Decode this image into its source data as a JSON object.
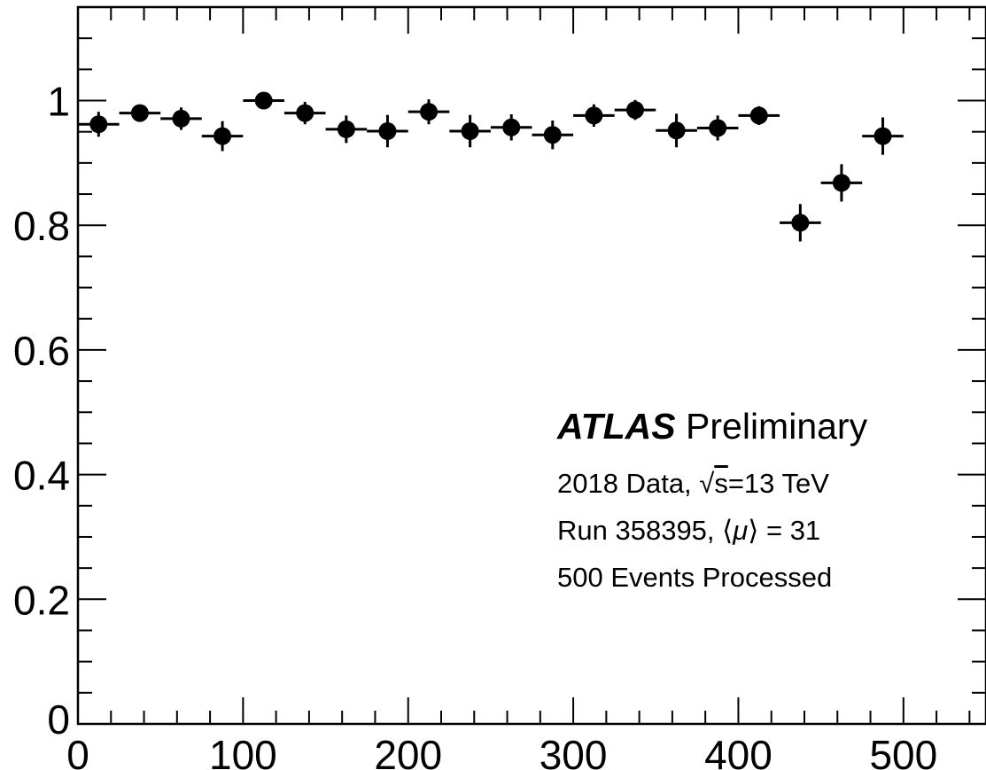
{
  "chart_data": {
    "type": "scatter",
    "title": "",
    "xlabel": "",
    "ylabel": "",
    "xlim": [
      0,
      550
    ],
    "ylim": [
      0,
      1.15
    ],
    "x_ticks": [
      "0",
      "100",
      "200",
      "300",
      "400",
      "500"
    ],
    "y_ticks": [
      "0",
      "0.2",
      "0.4",
      "0.6",
      "0.8",
      "1"
    ],
    "grid": false,
    "bin_width": 25,
    "series": [
      {
        "x": [
          12.5,
          37.5,
          62.5,
          87.5,
          112.5,
          137.5,
          162.5,
          187.5,
          212.5,
          237.5,
          262.5,
          287.5,
          312.5,
          337.5,
          362.5,
          387.5,
          412.5,
          437.5,
          462.5,
          487.5
        ],
        "y": [
          0.962,
          0.98,
          0.971,
          0.943,
          1.0,
          0.98,
          0.954,
          0.951,
          0.982,
          0.951,
          0.957,
          0.945,
          0.976,
          0.985,
          0.952,
          0.956,
          0.976,
          0.804,
          0.868,
          0.943
        ],
        "yerr": [
          0.02,
          0.012,
          0.018,
          0.024,
          0.005,
          0.018,
          0.022,
          0.026,
          0.02,
          0.026,
          0.021,
          0.023,
          0.018,
          0.016,
          0.027,
          0.02,
          0.015,
          0.03,
          0.03,
          0.03
        ]
      }
    ]
  },
  "legend": {
    "atlas": "ATLAS",
    "preliminary": "Preliminary",
    "data_prefix": "2018 Data, ",
    "sqrt_symbol": "√",
    "sqrt_s": "s",
    "energy_suffix": "=13 TeV",
    "run_text": "Run 358395, ",
    "mu_open": "⟨",
    "mu_symbol": "μ",
    "mu_close": "⟩",
    "mu_value": " = 31",
    "events": "500 Events Processed"
  }
}
